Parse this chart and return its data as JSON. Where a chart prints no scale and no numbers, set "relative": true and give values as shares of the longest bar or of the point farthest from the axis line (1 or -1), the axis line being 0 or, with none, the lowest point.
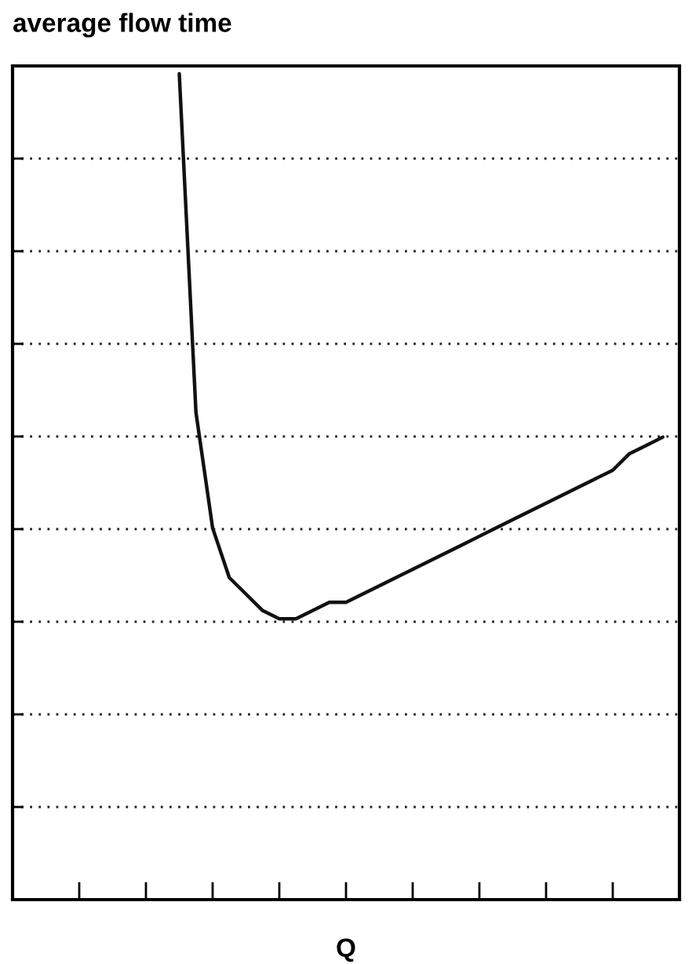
{
  "chart_data": {
    "type": "line",
    "title": "average flow time",
    "xlabel": "Q",
    "relative": true,
    "grid": "y",
    "color": "#111111",
    "categories": [
      null,
      null,
      null,
      null,
      null,
      null,
      null,
      null,
      null,
      null,
      null,
      null,
      null,
      null,
      null,
      null,
      null,
      null,
      null,
      null,
      null,
      null,
      null,
      null,
      null,
      null,
      null,
      null,
      null,
      null,
      null,
      null,
      null,
      null,
      null,
      null,
      null,
      null,
      null,
      null,
      null
    ],
    "values": [
      null,
      null,
      null,
      null,
      null,
      null,
      null,
      null,
      null,
      null,
      1,
      0.59,
      0.45,
      0.39,
      0.37,
      0.35,
      0.34,
      0.34,
      0.35,
      0.36,
      0.36,
      0.37,
      0.38,
      0.39,
      0.4,
      0.41,
      0.42,
      0.43,
      0.44,
      0.45,
      0.46,
      0.47,
      0.48,
      0.49,
      0.5,
      0.51,
      0.52,
      0.54,
      0.55,
      0.56,
      null
    ]
  }
}
